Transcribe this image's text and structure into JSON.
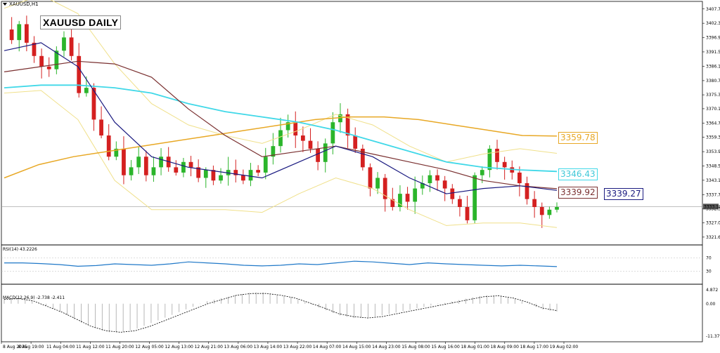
{
  "header": {
    "symbol_label": "XAUUSD,H1",
    "title": "XAUUSD DAILY"
  },
  "colors": {
    "candle_up": "#2bb52b",
    "candle_down": "#d42020",
    "bollinger": "#f0e08a",
    "ma_fast": "#1a1a80",
    "ma_mid": "#7a3030",
    "ma_slow": "#40d8e8",
    "ma_long": "#e8a825",
    "rsi": "#1f78c8",
    "macd_signal": "#000000"
  },
  "tags": {
    "ma_long_value": "3359.78",
    "ma_slow_value": "3346.43",
    "ma_mid_value": "3339.92",
    "ma_fast_value": "3339.27",
    "current_price": "3333.18"
  },
  "indicators": {
    "rsi_label": "RSI(14) 43.2226",
    "macd_label": "MACD(12,26,9) -2.738 -2.411"
  },
  "chart_data": {
    "type": "candlestick",
    "price_axis": {
      "ylim": [
        3318.7,
        3410.6
      ],
      "ticks": [
        "3407.75",
        "3402.35",
        "3396.90",
        "3391.55",
        "3386.15",
        "3380.70",
        "3375.35",
        "3370.10",
        "3364.70",
        "3359.30",
        "3353.90",
        "3348.50",
        "3343.10",
        "3337.70",
        "3332.30",
        "3327.05",
        "3321.65"
      ]
    },
    "time_axis": [
      "8 Aug 2025",
      "8 Aug 19:00",
      "11 Aug 04:00",
      "11 Aug 12:00",
      "11 Aug 20:00",
      "12 Aug 05:00",
      "12 Aug 13:00",
      "12 Aug 21:00",
      "13 Aug 06:00",
      "13 Aug 14:00",
      "13 Aug 22:00",
      "14 Aug 07:00",
      "14 Aug 15:00",
      "14 Aug 23:00",
      "15 Aug 08:00",
      "15 Aug 16:00",
      "18 Aug 01:00",
      "18 Aug 09:00",
      "18 Aug 17:00",
      "19 Aug 02:00"
    ],
    "candle_close_path": [
      3400,
      3396,
      3402,
      3395,
      3390,
      3386,
      3385,
      3392,
      3397,
      3390,
      3376,
      3378,
      3366,
      3360,
      3352,
      3355,
      3345,
      3348,
      3352,
      3345,
      3348,
      3352,
      3348,
      3346,
      3350,
      3348,
      3344,
      3347,
      3343,
      3345,
      3347,
      3345,
      3343,
      3347,
      3346,
      3352,
      3356,
      3362,
      3365,
      3360,
      3358,
      3355,
      3350,
      3357,
      3365,
      3368,
      3360,
      3355,
      3348,
      3340,
      3344,
      3336,
      3333,
      3338,
      3335,
      3340,
      3342,
      3345,
      3343,
      3340,
      3336,
      3333,
      3328,
      3345,
      3347,
      3355,
      3350,
      3348,
      3346,
      3342,
      3336,
      3333,
      3330,
      3332,
      3333
    ],
    "ma_long": [
      3344,
      3349,
      3352,
      3354,
      3356,
      3358,
      3360,
      3362,
      3364,
      3366,
      3367,
      3367,
      3366,
      3364,
      3362,
      3360,
      3359.78
    ],
    "ma_slow": [
      3378,
      3379,
      3379,
      3378,
      3376,
      3372,
      3369,
      3367,
      3365,
      3362,
      3358,
      3354,
      3350,
      3348,
      3347,
      3346.43
    ],
    "ma_mid": [
      3384,
      3386,
      3388,
      3387,
      3382,
      3370,
      3360,
      3352,
      3354,
      3356,
      3353,
      3350,
      3347,
      3343,
      3341,
      3339.92
    ],
    "ma_fast": [
      3392,
      3395,
      3386,
      3365,
      3352,
      3348,
      3346,
      3344,
      3350,
      3356,
      3352,
      3344,
      3338,
      3340,
      3341,
      3339.27
    ],
    "rsi": {
      "levels": [
        "70",
        "30"
      ],
      "values": [
        55,
        55,
        53,
        50,
        45,
        47,
        52,
        50,
        48,
        52,
        58,
        55,
        52,
        48,
        46,
        48,
        52,
        50,
        55,
        60,
        58,
        54,
        50,
        55,
        52,
        50,
        48,
        46,
        48,
        46,
        44
      ]
    },
    "macd": {
      "ticks": [
        "4.872",
        "0.00",
        "-11.379"
      ],
      "histogram": [
        2,
        2,
        1,
        -1,
        -3,
        -6,
        -8,
        -10,
        -10,
        -9,
        -7,
        -5,
        -3,
        -1,
        1,
        2,
        3,
        4,
        4,
        3,
        2,
        0,
        -2,
        -4,
        -5,
        -5,
        -4,
        -3,
        -2,
        -1,
        0,
        1,
        2,
        3,
        3,
        2,
        0,
        -2,
        -2.74
      ],
      "signal": [
        1.5,
        1.8,
        1,
        -1,
        -3,
        -5.5,
        -8,
        -9.5,
        -10,
        -9.5,
        -8,
        -6,
        -4,
        -2,
        0,
        1.5,
        3,
        3.6,
        3.6,
        3,
        2,
        0.3,
        -1.5,
        -3.5,
        -4.5,
        -5,
        -4.5,
        -3.5,
        -2.5,
        -1.5,
        -0.5,
        0.5,
        1.5,
        2.5,
        2.8,
        2,
        0.5,
        -1.5,
        -2.41
      ]
    }
  }
}
